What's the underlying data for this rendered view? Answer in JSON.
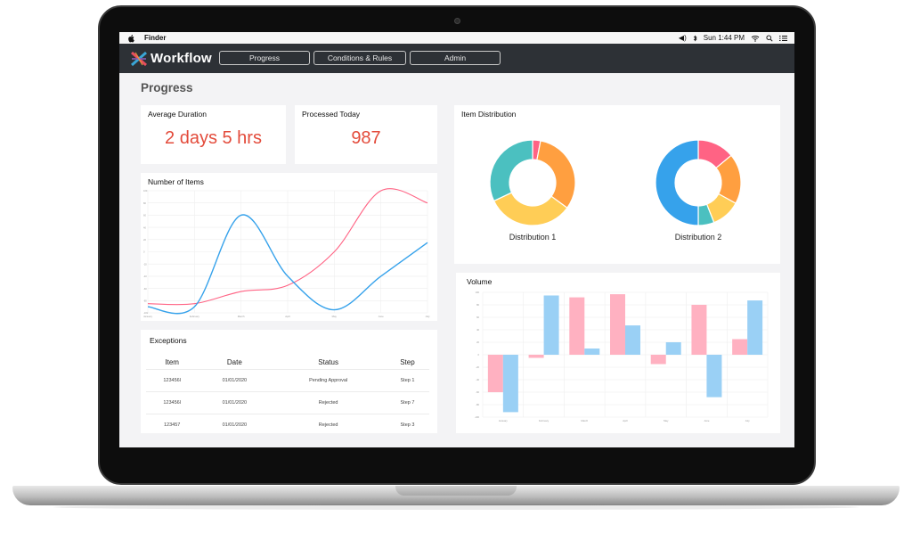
{
  "menubar": {
    "app_name": "Finder",
    "clock": "Sun 1:44 PM",
    "icons": [
      "apple-icon",
      "volume-icon",
      "bluetooth-icon",
      "wifi-icon",
      "spotlight-search-icon",
      "menu-list-icon"
    ]
  },
  "header": {
    "brand": "Workflow",
    "nav": [
      {
        "label": "Progress"
      },
      {
        "label": "Conditions & Rules"
      },
      {
        "label": "Admin"
      }
    ]
  },
  "page": {
    "title": "Progress"
  },
  "kpis": {
    "avg_duration": {
      "title": "Average Duration",
      "value": "2 days 5 hrs"
    },
    "processed_today": {
      "title": "Processed Today",
      "value": "987"
    }
  },
  "line_chart": {
    "title": "Number of Items"
  },
  "exceptions": {
    "title": "Exceptions",
    "columns": [
      "Item",
      "Date",
      "Status",
      "Step"
    ],
    "rows": [
      [
        "123456l",
        "01/01/2020",
        "Pending Approval",
        "Step 1"
      ],
      [
        "123456l",
        "01/01/2020",
        "Rejected",
        "Step 7"
      ],
      [
        "123457",
        "01/01/2020",
        "Rejected",
        "Step 3"
      ]
    ]
  },
  "distribution": {
    "title": "Item Distribution"
  },
  "volume": {
    "title": "Volume"
  },
  "colors": {
    "accent_red": "#e34b3b",
    "header_bg": "#2d3136",
    "pink": "#ff6384",
    "blue": "#36a2eb",
    "orange": "#ff9f40",
    "yellow": "#ffcd56",
    "teal": "#4bc0c0"
  },
  "chart_data": [
    {
      "type": "line",
      "title": "Number of Items",
      "x": [
        "January",
        "February",
        "March",
        "April",
        "May",
        "June",
        "July"
      ],
      "ylim": [
        -100,
        100
      ],
      "series": [
        {
          "values": [
            -85,
            -85,
            -65,
            -55,
            0,
            100,
            80
          ]
        },
        {
          "values": [
            -90,
            -90,
            60,
            -40,
            -95,
            -40,
            15
          ]
        }
      ]
    },
    {
      "type": "pie",
      "title": "Distribution 1",
      "slices": [
        {
          "value": 3,
          "color": "#ff6384"
        },
        {
          "value": 32,
          "color": "#ff9f40"
        },
        {
          "value": 33,
          "color": "#ffcd56"
        },
        {
          "value": 32,
          "color": "#4bc0c0"
        }
      ]
    },
    {
      "type": "pie",
      "title": "Distribution 2",
      "slices": [
        {
          "value": 14,
          "color": "#ff6384"
        },
        {
          "value": 19,
          "color": "#ff9f40"
        },
        {
          "value": 11,
          "color": "#ffcd56"
        },
        {
          "value": 6,
          "color": "#4bc0c0"
        },
        {
          "value": 50,
          "color": "#36a2eb"
        }
      ]
    },
    {
      "type": "bar",
      "title": "Volume",
      "categories": [
        "January",
        "February",
        "March",
        "April",
        "May",
        "June",
        "July"
      ],
      "ylim": [
        -100,
        100
      ],
      "series": [
        {
          "color": "#ff6384",
          "values": [
            -60,
            -5,
            92,
            97,
            -15,
            80,
            25
          ]
        },
        {
          "color": "#36a2eb",
          "values": [
            -92,
            95,
            10,
            47,
            20,
            -68,
            87
          ]
        }
      ]
    }
  ]
}
